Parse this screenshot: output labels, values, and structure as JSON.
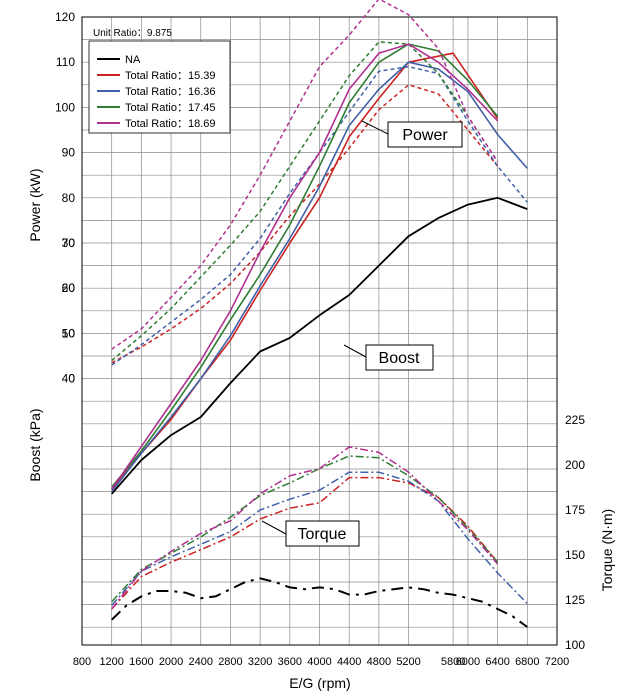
{
  "chart_data": {
    "type": "line",
    "xlabel": "E/G (rpm)",
    "ylabel_left_power": "Power (kW)",
    "ylabel_left_boost": "Boost (kPa)",
    "ylabel_right": "Torque (N·m)",
    "unit_ratio": "Unit Ratio：9.875",
    "xlim": [
      800,
      7200
    ],
    "x_ticks": [
      800,
      1200,
      1600,
      2000,
      2400,
      2800,
      3200,
      3600,
      4000,
      4400,
      4800,
      5200,
      5800,
      6000,
      6400,
      6800,
      7200
    ],
    "power_ticks": [
      120,
      110,
      100,
      90,
      80,
      70,
      60,
      50,
      40
    ],
    "boost_ticks": [
      30,
      20,
      10,
      0
    ],
    "torque_ticks": [
      225,
      200,
      175,
      150,
      125,
      100
    ],
    "callouts": {
      "power": "Power",
      "boost": "Boost",
      "torque": "Torque"
    },
    "grid": true,
    "legend_position": "top-left",
    "series": [
      {
        "name": "NA",
        "color": "#000000",
        "power": {
          "x": [
            1200,
            1600,
            2000,
            2400,
            2800,
            3200,
            3600,
            4000,
            4400,
            4800,
            5200,
            5600,
            6000,
            6400,
            6800
          ],
          "y": [
            14.5,
            22,
            27.5,
            31.5,
            39,
            46,
            49,
            54,
            58.5,
            65,
            71.5,
            75.5,
            78.5,
            80,
            77.5
          ]
        },
        "torque": {
          "x": [
            1200,
            1400,
            1600,
            1800,
            2000,
            2200,
            2400,
            2600,
            2800,
            3000,
            3200,
            3400,
            3600,
            3800,
            4000,
            4200,
            4400,
            4600,
            4800,
            5000,
            5200,
            5400,
            5600,
            5800,
            6000,
            6200,
            6400,
            6600,
            6800
          ],
          "y": [
            114,
            122,
            127,
            130,
            130,
            129,
            126,
            127,
            131,
            135,
            137,
            135,
            132,
            131,
            132,
            131,
            128,
            128,
            130,
            131,
            132,
            131,
            129,
            128,
            126,
            124,
            120,
            116,
            110
          ]
        }
      },
      {
        "name": "Total Ratio：15.39",
        "color": "#cc2222",
        "power": {
          "x": [
            1200,
            1600,
            2000,
            2400,
            2800,
            3200,
            3600,
            4000,
            4400,
            4800,
            5200,
            5800,
            6400
          ],
          "y": [
            15.5,
            23.5,
            31,
            40,
            48.5,
            59.5,
            70,
            80,
            93.5,
            102,
            110,
            112,
            97.5
          ]
        },
        "boost": {
          "x": [
            1200,
            1600,
            2000,
            2400,
            2800,
            3200,
            3600,
            4000,
            4400,
            4800,
            5200,
            5600,
            6000,
            6400
          ],
          "y": [
            3.5,
            7,
            11,
            15.5,
            21,
            28,
            36,
            43,
            51,
            59.5,
            65,
            63,
            55,
            47
          ]
        },
        "torque": {
          "x": [
            1200,
            1600,
            2000,
            2400,
            2800,
            3200,
            3600,
            4000,
            4400,
            4800,
            5200,
            5600,
            6000,
            6400
          ],
          "y": [
            120,
            138,
            146,
            153,
            160,
            170,
            176,
            179,
            193,
            193,
            190,
            182,
            166,
            146
          ]
        }
      },
      {
        "name": "Total Ratio：16.36",
        "color": "#4060a8",
        "power": {
          "x": [
            1200,
            1600,
            2000,
            2400,
            2800,
            3200,
            3600,
            4000,
            4400,
            4800,
            5200,
            5600,
            6000,
            6400,
            6800
          ],
          "y": [
            15,
            23.5,
            31.5,
            40,
            49.5,
            60.5,
            71,
            82.5,
            96,
            104,
            110,
            108.5,
            103.5,
            94,
            86.5
          ]
        },
        "boost": {
          "x": [
            1200,
            1600,
            2000,
            2400,
            2800,
            3200,
            3600,
            4000,
            4400,
            4800,
            5200,
            5600,
            6000,
            6400,
            6800
          ],
          "y": [
            3,
            7.5,
            12.5,
            17.5,
            23,
            31,
            41,
            50,
            59,
            68,
            69,
            67.5,
            57,
            47,
            39
          ]
        },
        "torque": {
          "x": [
            1200,
            1600,
            2000,
            2400,
            2800,
            3200,
            3600,
            4000,
            4400,
            4800,
            5200,
            5600,
            6000,
            6400,
            6800
          ],
          "y": [
            122,
            141,
            149,
            156,
            163,
            175,
            181,
            186,
            196,
            196,
            191,
            180,
            159,
            140,
            123
          ]
        }
      },
      {
        "name": "Total Ratio：17.45",
        "color": "#2e7d32",
        "power": {
          "x": [
            1200,
            1600,
            2000,
            2400,
            2800,
            3200,
            3600,
            4000,
            4400,
            4800,
            5200,
            5600,
            6000,
            6400
          ],
          "y": [
            16,
            24,
            33,
            42.5,
            53,
            63,
            74,
            87,
            101,
            110,
            114,
            112.5,
            106,
            98
          ]
        },
        "boost": {
          "x": [
            1200,
            1600,
            2000,
            2400,
            2800,
            3200,
            3600,
            4000,
            4400,
            4800,
            5200,
            5600,
            6000,
            6400
          ],
          "y": [
            4,
            9.5,
            15.5,
            22.5,
            29.5,
            37,
            47,
            57,
            67,
            74.5,
            74,
            67.5,
            58,
            48
          ]
        },
        "torque": {
          "x": [
            1200,
            1600,
            2000,
            2400,
            2800,
            3200,
            3600,
            4000,
            4400,
            4800,
            5200,
            5600,
            6000,
            6400
          ],
          "y": [
            124,
            142,
            151,
            160,
            171,
            183,
            190,
            198,
            205,
            204,
            194,
            182,
            165,
            146
          ]
        }
      },
      {
        "name": "Total Ratio：18.69",
        "color": "#b03090",
        "power": {
          "x": [
            1200,
            1600,
            2000,
            2400,
            2800,
            3200,
            3600,
            4000,
            4400,
            4800,
            5200,
            5600,
            6000,
            6400
          ],
          "y": [
            15.5,
            25,
            34.5,
            44,
            55,
            68,
            80,
            90,
            104,
            112,
            114,
            110,
            104,
            97
          ]
        },
        "boost": {
          "x": [
            1200,
            1600,
            2000,
            2400,
            2800,
            3200,
            3600,
            4000,
            4400,
            4800,
            5200,
            5600,
            6000,
            6400
          ],
          "y": [
            6.5,
            11,
            18,
            25,
            34,
            45,
            57,
            69,
            76,
            84,
            80.5,
            73,
            58,
            48
          ]
        },
        "torque": {
          "x": [
            1200,
            1600,
            2000,
            2400,
            2800,
            3200,
            3600,
            4000,
            4400,
            4800,
            5200,
            5600,
            6000,
            6400
          ],
          "y": [
            120,
            141,
            152,
            162,
            169,
            184,
            194,
            198,
            210,
            207,
            196,
            180,
            164,
            145
          ]
        }
      }
    ]
  }
}
